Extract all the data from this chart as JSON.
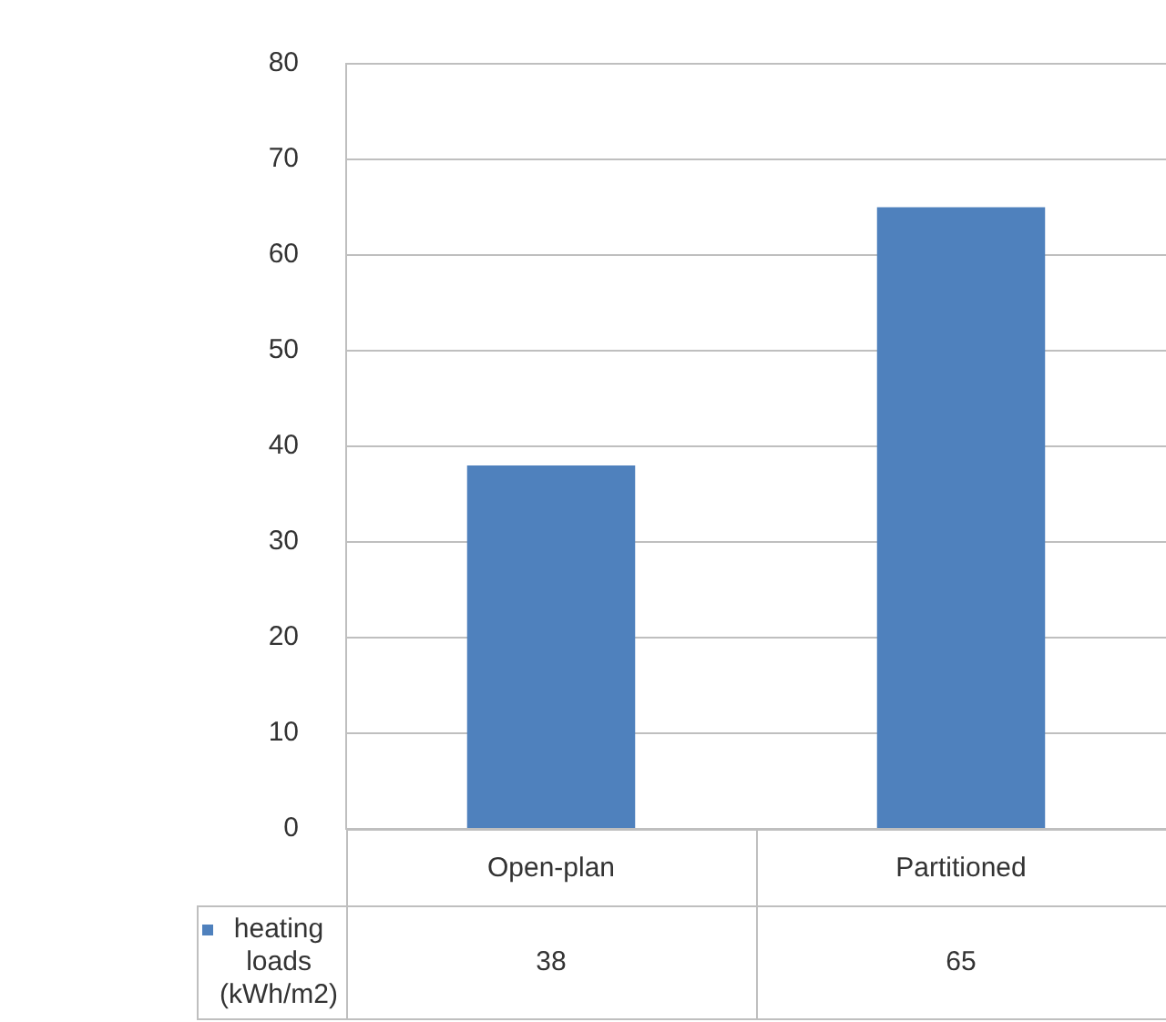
{
  "chart_data": {
    "type": "bar",
    "categories": [
      "Open-plan",
      "Partitioned"
    ],
    "series": [
      {
        "name": "heating loads (kWh/m2)",
        "color": "#4f81bd",
        "values": [
          38,
          65
        ]
      }
    ],
    "ylim": [
      0,
      80
    ],
    "yticks": [
      0,
      10,
      20,
      30,
      40,
      50,
      60,
      70,
      80
    ],
    "grid": "y",
    "data_labels": true
  }
}
